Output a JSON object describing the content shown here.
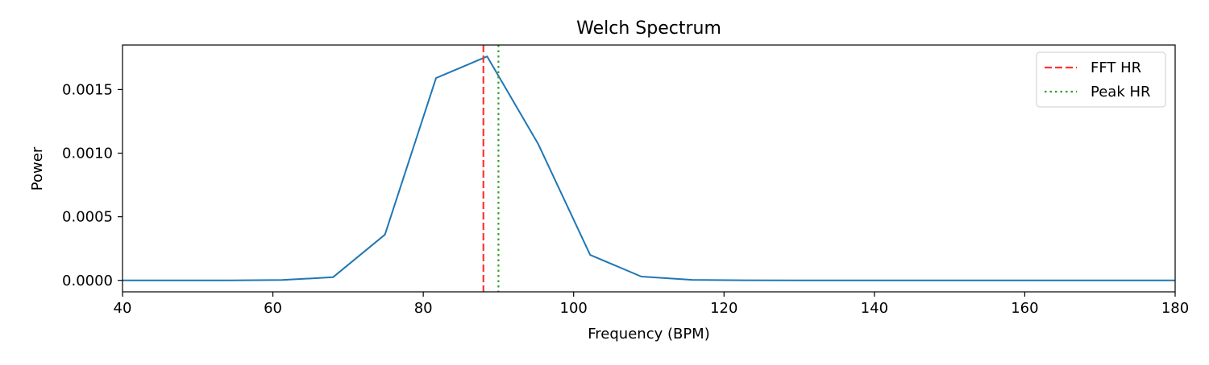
{
  "chart_data": {
    "type": "line",
    "title": "Welch Spectrum",
    "xlabel": "Frequency (BPM)",
    "ylabel": "Power",
    "xlim": [
      40,
      180
    ],
    "ylim": [
      -9e-05,
      0.00185
    ],
    "x_ticks": [
      40,
      60,
      80,
      100,
      120,
      140,
      160,
      180
    ],
    "x_tick_labels": [
      "40",
      "60",
      "80",
      "100",
      "120",
      "140",
      "160",
      "180"
    ],
    "y_ticks": [
      0.0,
      0.0005,
      0.001,
      0.0015
    ],
    "y_tick_labels": [
      "0.0000",
      "0.0005",
      "0.0010",
      "0.0015"
    ],
    "grid": false,
    "legend_position": "top-right",
    "series": [
      {
        "name": "",
        "color": "#1f77b4",
        "x": [
          40.0,
          47.5,
          54.3,
          61.2,
          68.0,
          74.9,
          81.7,
          88.5,
          95.3,
          102.2,
          109.0,
          115.8,
          122.7,
          129.5,
          136.3,
          143.2,
          150.0,
          156.8,
          163.7,
          170.5,
          177.3,
          180.0
        ],
        "values": [
          0.0,
          0.0,
          0.0,
          3e-06,
          2.5e-05,
          0.00036,
          0.00159,
          0.00176,
          0.00107,
          0.0002,
          3e-05,
          4e-06,
          1e-06,
          0.0,
          0.0,
          0.0,
          0.0,
          0.0,
          0.0,
          0.0,
          0.0,
          0.0
        ]
      }
    ],
    "vlines": [
      {
        "name": "FFT HR",
        "x": 88.0,
        "color": "#ff3333",
        "style": "dashed"
      },
      {
        "name": "Peak HR",
        "x": 90.0,
        "color": "#33a02c",
        "style": "dotted"
      }
    ]
  }
}
